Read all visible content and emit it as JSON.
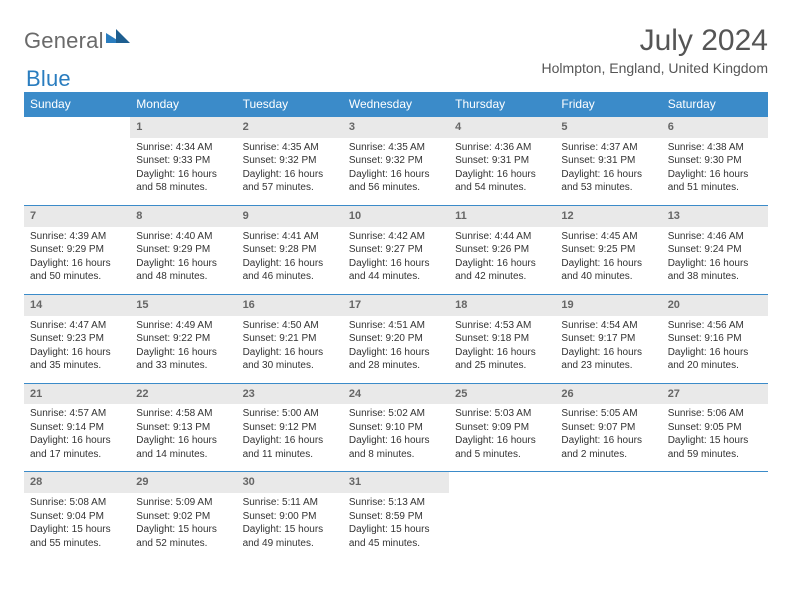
{
  "logo": {
    "word1": "General",
    "word2": "Blue"
  },
  "title": "July 2024",
  "location": "Holmpton, England, United Kingdom",
  "colors": {
    "header_bg": "#3b8bc9",
    "header_text": "#ffffff",
    "daynum_bg": "#e9e9e9",
    "daynum_text": "#666666",
    "row_divider": "#3b8bc9",
    "body_text": "#333333",
    "logo_gray": "#6a6a6a",
    "logo_blue": "#2a7dbf"
  },
  "weekdays": [
    "Sunday",
    "Monday",
    "Tuesday",
    "Wednesday",
    "Thursday",
    "Friday",
    "Saturday"
  ],
  "weeks": [
    [
      null,
      {
        "n": "1",
        "sr": "Sunrise: 4:34 AM",
        "ss": "Sunset: 9:33 PM",
        "dl": "Daylight: 16 hours and 58 minutes."
      },
      {
        "n": "2",
        "sr": "Sunrise: 4:35 AM",
        "ss": "Sunset: 9:32 PM",
        "dl": "Daylight: 16 hours and 57 minutes."
      },
      {
        "n": "3",
        "sr": "Sunrise: 4:35 AM",
        "ss": "Sunset: 9:32 PM",
        "dl": "Daylight: 16 hours and 56 minutes."
      },
      {
        "n": "4",
        "sr": "Sunrise: 4:36 AM",
        "ss": "Sunset: 9:31 PM",
        "dl": "Daylight: 16 hours and 54 minutes."
      },
      {
        "n": "5",
        "sr": "Sunrise: 4:37 AM",
        "ss": "Sunset: 9:31 PM",
        "dl": "Daylight: 16 hours and 53 minutes."
      },
      {
        "n": "6",
        "sr": "Sunrise: 4:38 AM",
        "ss": "Sunset: 9:30 PM",
        "dl": "Daylight: 16 hours and 51 minutes."
      }
    ],
    [
      {
        "n": "7",
        "sr": "Sunrise: 4:39 AM",
        "ss": "Sunset: 9:29 PM",
        "dl": "Daylight: 16 hours and 50 minutes."
      },
      {
        "n": "8",
        "sr": "Sunrise: 4:40 AM",
        "ss": "Sunset: 9:29 PM",
        "dl": "Daylight: 16 hours and 48 minutes."
      },
      {
        "n": "9",
        "sr": "Sunrise: 4:41 AM",
        "ss": "Sunset: 9:28 PM",
        "dl": "Daylight: 16 hours and 46 minutes."
      },
      {
        "n": "10",
        "sr": "Sunrise: 4:42 AM",
        "ss": "Sunset: 9:27 PM",
        "dl": "Daylight: 16 hours and 44 minutes."
      },
      {
        "n": "11",
        "sr": "Sunrise: 4:44 AM",
        "ss": "Sunset: 9:26 PM",
        "dl": "Daylight: 16 hours and 42 minutes."
      },
      {
        "n": "12",
        "sr": "Sunrise: 4:45 AM",
        "ss": "Sunset: 9:25 PM",
        "dl": "Daylight: 16 hours and 40 minutes."
      },
      {
        "n": "13",
        "sr": "Sunrise: 4:46 AM",
        "ss": "Sunset: 9:24 PM",
        "dl": "Daylight: 16 hours and 38 minutes."
      }
    ],
    [
      {
        "n": "14",
        "sr": "Sunrise: 4:47 AM",
        "ss": "Sunset: 9:23 PM",
        "dl": "Daylight: 16 hours and 35 minutes."
      },
      {
        "n": "15",
        "sr": "Sunrise: 4:49 AM",
        "ss": "Sunset: 9:22 PM",
        "dl": "Daylight: 16 hours and 33 minutes."
      },
      {
        "n": "16",
        "sr": "Sunrise: 4:50 AM",
        "ss": "Sunset: 9:21 PM",
        "dl": "Daylight: 16 hours and 30 minutes."
      },
      {
        "n": "17",
        "sr": "Sunrise: 4:51 AM",
        "ss": "Sunset: 9:20 PM",
        "dl": "Daylight: 16 hours and 28 minutes."
      },
      {
        "n": "18",
        "sr": "Sunrise: 4:53 AM",
        "ss": "Sunset: 9:18 PM",
        "dl": "Daylight: 16 hours and 25 minutes."
      },
      {
        "n": "19",
        "sr": "Sunrise: 4:54 AM",
        "ss": "Sunset: 9:17 PM",
        "dl": "Daylight: 16 hours and 23 minutes."
      },
      {
        "n": "20",
        "sr": "Sunrise: 4:56 AM",
        "ss": "Sunset: 9:16 PM",
        "dl": "Daylight: 16 hours and 20 minutes."
      }
    ],
    [
      {
        "n": "21",
        "sr": "Sunrise: 4:57 AM",
        "ss": "Sunset: 9:14 PM",
        "dl": "Daylight: 16 hours and 17 minutes."
      },
      {
        "n": "22",
        "sr": "Sunrise: 4:58 AM",
        "ss": "Sunset: 9:13 PM",
        "dl": "Daylight: 16 hours and 14 minutes."
      },
      {
        "n": "23",
        "sr": "Sunrise: 5:00 AM",
        "ss": "Sunset: 9:12 PM",
        "dl": "Daylight: 16 hours and 11 minutes."
      },
      {
        "n": "24",
        "sr": "Sunrise: 5:02 AM",
        "ss": "Sunset: 9:10 PM",
        "dl": "Daylight: 16 hours and 8 minutes."
      },
      {
        "n": "25",
        "sr": "Sunrise: 5:03 AM",
        "ss": "Sunset: 9:09 PM",
        "dl": "Daylight: 16 hours and 5 minutes."
      },
      {
        "n": "26",
        "sr": "Sunrise: 5:05 AM",
        "ss": "Sunset: 9:07 PM",
        "dl": "Daylight: 16 hours and 2 minutes."
      },
      {
        "n": "27",
        "sr": "Sunrise: 5:06 AM",
        "ss": "Sunset: 9:05 PM",
        "dl": "Daylight: 15 hours and 59 minutes."
      }
    ],
    [
      {
        "n": "28",
        "sr": "Sunrise: 5:08 AM",
        "ss": "Sunset: 9:04 PM",
        "dl": "Daylight: 15 hours and 55 minutes."
      },
      {
        "n": "29",
        "sr": "Sunrise: 5:09 AM",
        "ss": "Sunset: 9:02 PM",
        "dl": "Daylight: 15 hours and 52 minutes."
      },
      {
        "n": "30",
        "sr": "Sunrise: 5:11 AM",
        "ss": "Sunset: 9:00 PM",
        "dl": "Daylight: 15 hours and 49 minutes."
      },
      {
        "n": "31",
        "sr": "Sunrise: 5:13 AM",
        "ss": "Sunset: 8:59 PM",
        "dl": "Daylight: 15 hours and 45 minutes."
      },
      null,
      null,
      null
    ]
  ]
}
